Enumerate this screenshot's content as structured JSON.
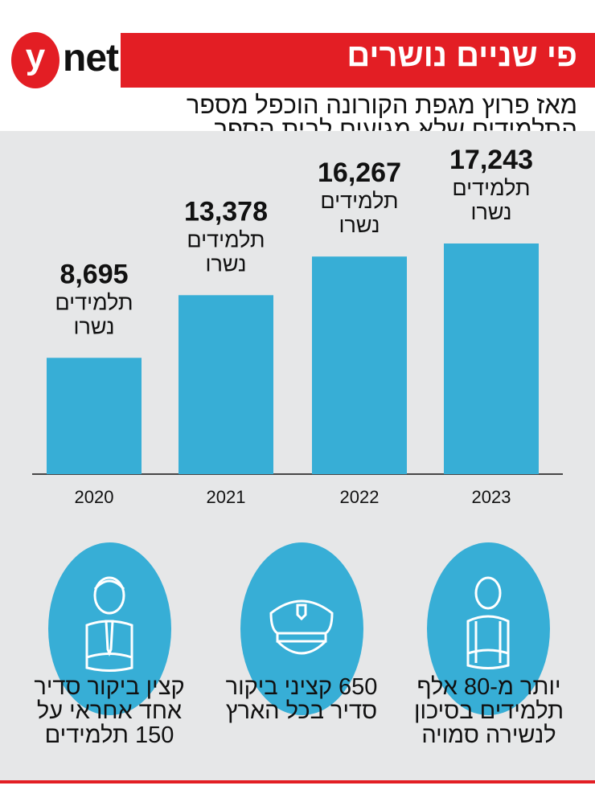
{
  "logo": {
    "letter": "y",
    "text": "net"
  },
  "header": {
    "title": "פי שניים נושרים",
    "subtitle": "מאז פרוץ מגפת הקורונה הוכפל מספר התלמידים שלא מגיעים לבית הספר"
  },
  "chart_data": {
    "type": "bar",
    "categories": [
      "2020",
      "2021",
      "2022",
      "2023"
    ],
    "values": [
      8695,
      13378,
      16267,
      17243
    ],
    "value_labels": [
      "8,695",
      "13,378",
      "16,267",
      "17,243"
    ],
    "unit_label_line1": "תלמידים",
    "unit_label_line2": "נשרו",
    "bar_color": "#37aed6",
    "grid": false
  },
  "facts": [
    {
      "icon": "student-icon",
      "text": "יותר מ-80 אלף תלמידים בסיכון לנשירה סמויה"
    },
    {
      "icon": "police-cap-icon",
      "text": "650 קציני ביקור סדיר בכל הארץ"
    },
    {
      "icon": "officer-icon",
      "text": "קצין ביקור סדיר אחד אחראי על 150 תלמידים"
    }
  ],
  "colors": {
    "brand_red": "#e31e24",
    "accent_blue": "#37aed6",
    "panel_gray": "#e6e7e8"
  }
}
